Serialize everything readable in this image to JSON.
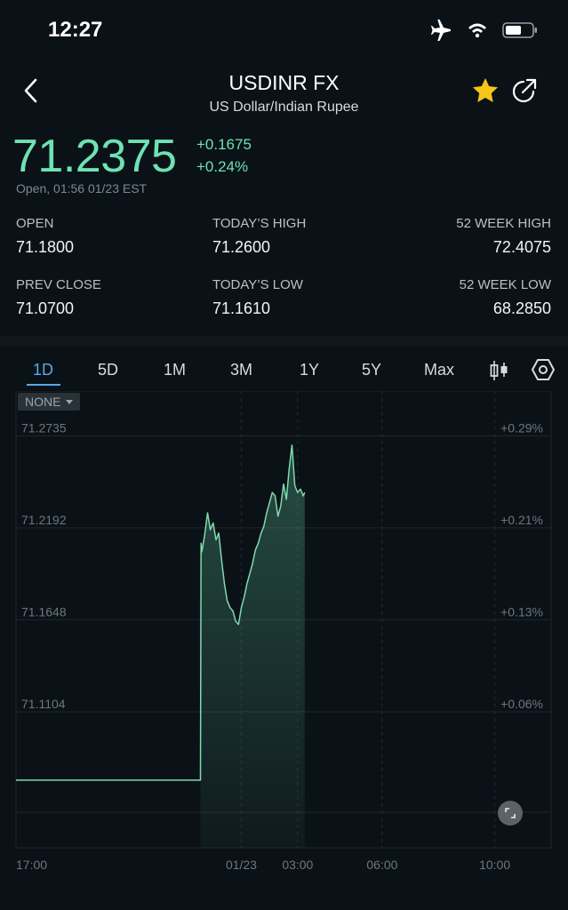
{
  "status_bar": {
    "time": "12:27"
  },
  "header": {
    "title": "USDINR FX",
    "subtitle": "US Dollar/Indian Rupee"
  },
  "quote": {
    "price": "71.2375",
    "change_abs": "+0.1675",
    "change_pct": "+0.24%",
    "note": "Open, 01:56 01/23 EST"
  },
  "stats": {
    "open": {
      "label": "OPEN",
      "value": "71.1800"
    },
    "todays_high": {
      "label": "TODAY’S HIGH",
      "value": "71.2600"
    },
    "week52_high": {
      "label": "52 WEEK HIGH",
      "value": "72.4075"
    },
    "prev_close": {
      "label": "PREV CLOSE",
      "value": "71.0700"
    },
    "todays_low": {
      "label": "TODAY’S LOW",
      "value": "71.1610"
    },
    "week52_low": {
      "label": "52 WEEK LOW",
      "value": "68.2850"
    }
  },
  "range_tabs": [
    "1D",
    "5D",
    "1M",
    "3M",
    "1Y",
    "5Y",
    "Max"
  ],
  "active_range": "1D",
  "indicator": {
    "selected": "NONE"
  },
  "colors": {
    "accent": "#6ee2b3",
    "tab_active": "#5aa9e6",
    "background": "#0b1217"
  },
  "chart_data": {
    "type": "area",
    "y_labels": [
      "71.2735",
      "71.2192",
      "71.1648",
      "71.1104"
    ],
    "y_pct_labels": [
      "+0.29%",
      "+0.21%",
      "+0.13%",
      "+0.06%"
    ],
    "x_labels": [
      "17:00",
      "01/23",
      "03:00",
      "06:00",
      "10:00"
    ],
    "grid": true,
    "ylim": [
      71.03,
      71.3
    ],
    "x_unit": "hours since 17:00",
    "xlim": [
      0,
      19
    ],
    "x": [
      0,
      2,
      4,
      6,
      6.55,
      6.57,
      6.6,
      6.7,
      6.8,
      6.9,
      7.0,
      7.1,
      7.2,
      7.3,
      7.4,
      7.5,
      7.6,
      7.7,
      7.8,
      7.9,
      8.0,
      8.1,
      8.2,
      8.3,
      8.4,
      8.5,
      8.6,
      8.7,
      8.8,
      8.9,
      9.0,
      9.1,
      9.2,
      9.3,
      9.4,
      9.5,
      9.6,
      9.7,
      9.8,
      9.9,
      10.0,
      10.1,
      10.2,
      10.25
    ],
    "y": [
      71.07,
      71.07,
      71.07,
      71.07,
      71.07,
      71.21,
      71.205,
      71.215,
      71.228,
      71.218,
      71.222,
      71.212,
      71.216,
      71.2,
      71.186,
      71.176,
      71.172,
      71.17,
      71.164,
      71.162,
      71.172,
      71.178,
      71.186,
      71.192,
      71.198,
      71.206,
      71.21,
      71.216,
      71.22,
      71.228,
      71.234,
      71.24,
      71.238,
      71.226,
      71.232,
      71.245,
      71.236,
      71.254,
      71.268,
      71.244,
      71.24,
      71.242,
      71.238,
      71.24
    ]
  }
}
